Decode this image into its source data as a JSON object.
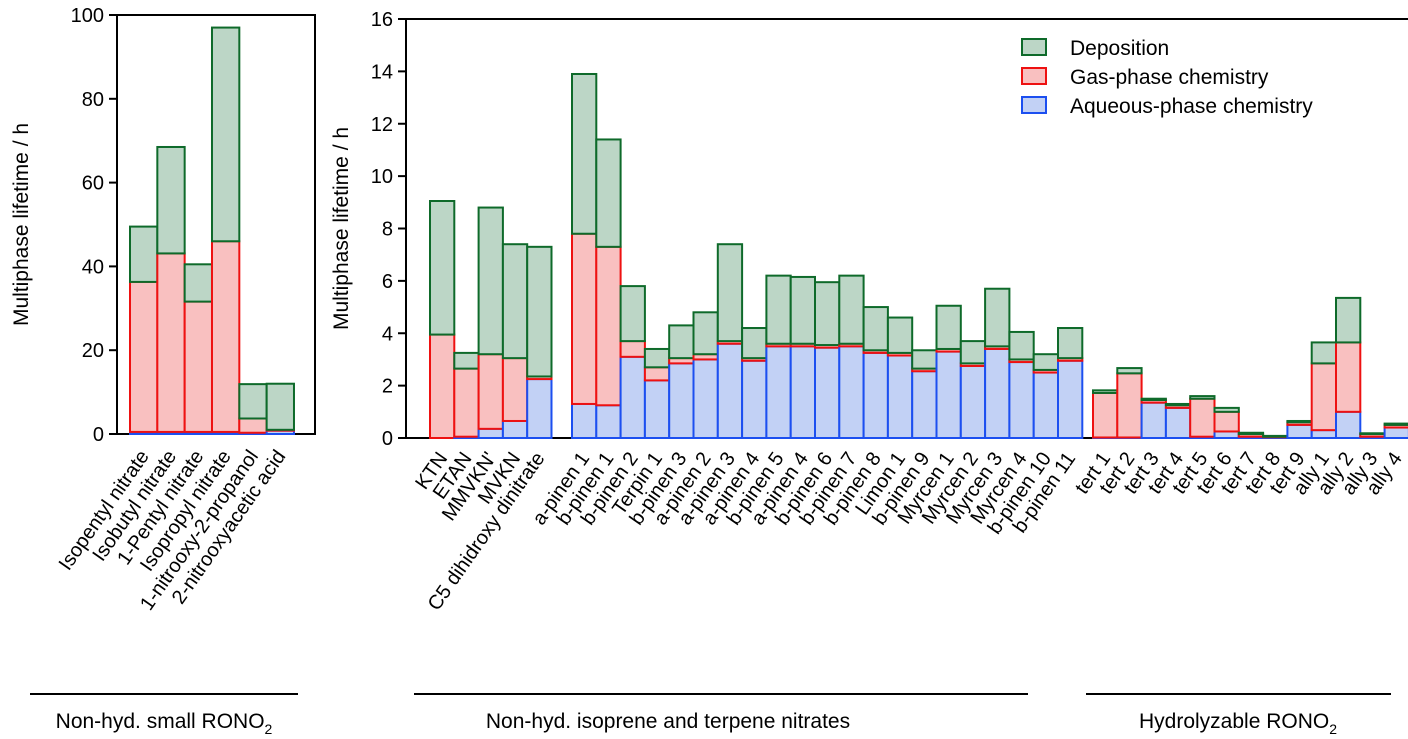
{
  "colors": {
    "aqueous_fill": "#c2d1f5",
    "aqueous_edge": "#1c4ff0",
    "gas_fill": "#f9c0c0",
    "gas_edge": "#ee1111",
    "dep_fill": "#bcd6c6",
    "dep_edge": "#0e6a2a"
  },
  "legend": [
    "Deposition",
    "Gas-phase chemistry",
    "Aqueous-phase chemistry"
  ],
  "groups": [
    {
      "name": "Non-hyd. small RONO",
      "sub": "2"
    },
    {
      "name": "Non-hyd. isoprene and terpene nitrates",
      "sub": ""
    },
    {
      "name": "Hydrolyzable RONO",
      "sub": "2"
    }
  ],
  "chart_data": [
    {
      "type": "bar",
      "stacked": true,
      "ylabel": "Multiphase lifetime / h",
      "ylim": [
        0,
        100
      ],
      "yticks": [
        0,
        20,
        40,
        60,
        80,
        100
      ],
      "categories": [
        "Isopentyl nitrate",
        "Isobutyl nitrate",
        "1-Pentyl nitrate",
        "Isopropyl nitrate",
        "1-nitrooxy-2-propanol",
        "2-nitrooxyacetic acid"
      ],
      "series": [
        {
          "name": "Aqueous-phase chemistry",
          "values": [
            0.5,
            0.5,
            0.5,
            0.5,
            0.3,
            0.8
          ]
        },
        {
          "name": "Gas-phase chemistry",
          "values": [
            35.8,
            42.6,
            31.1,
            45.5,
            3.4,
            0.2
          ]
        },
        {
          "name": "Deposition",
          "values": [
            13.2,
            25.4,
            8.9,
            51.0,
            8.2,
            11.0
          ]
        }
      ]
    },
    {
      "type": "bar",
      "stacked": true,
      "ylabel": "Multiphase lifetime / h",
      "ylim": [
        0,
        16
      ],
      "yticks": [
        0,
        2,
        4,
        6,
        8,
        10,
        12,
        14,
        16
      ],
      "groups": [
        [
          "KTN",
          "ETAN",
          "MMVKN'",
          "MVKN",
          "C5 dihidroxy dinitrate"
        ],
        [
          "a-pinen 1",
          "b-pinen 1",
          "b-pinen 2",
          "Terpin 1",
          "b-pinen 3",
          "a-pinen 2",
          "a-pinen 3",
          "a-pinen 4",
          "b-pinen 5",
          "a-pinen 4",
          "b-pinen 6",
          "b-pinen 7",
          "b-pinen 8",
          "Limon 1",
          "b-pinen 9",
          "Myrcen 1",
          "Myrcen 2",
          "Myrcen 3",
          "Myrcen 4",
          "b-pinen 10",
          "b-pinen 11"
        ],
        [
          "tert 1",
          "tert 2",
          "tert 3",
          "tert 4",
          "tert 5",
          "tert 6",
          "tert 7",
          "tert 8",
          "tert 9",
          "ally 1",
          "ally 2",
          "ally 3",
          "ally 4"
        ]
      ],
      "series": [
        {
          "name": "Aqueous-phase chemistry",
          "values": [
            [
              0.0,
              0.05,
              0.35,
              0.65,
              2.25
            ],
            [
              1.3,
              1.25,
              3.1,
              2.2,
              2.85,
              3.0,
              3.6,
              2.95,
              3.5,
              3.5,
              3.45,
              3.5,
              3.25,
              3.15,
              2.55,
              3.3,
              2.75,
              3.4,
              2.9,
              2.5,
              2.95
            ],
            [
              0.02,
              0.02,
              1.35,
              1.15,
              0.05,
              0.25,
              0.05,
              0.03,
              0.5,
              0.3,
              1.0,
              0.05,
              0.4
            ]
          ]
        },
        {
          "name": "Gas-phase chemistry",
          "values": [
            [
              3.95,
              2.6,
              2.85,
              2.4,
              0.1
            ],
            [
              6.5,
              6.05,
              0.6,
              0.5,
              0.2,
              0.2,
              0.1,
              0.1,
              0.1,
              0.1,
              0.1,
              0.1,
              0.1,
              0.1,
              0.1,
              0.1,
              0.1,
              0.1,
              0.1,
              0.1,
              0.1
            ],
            [
              1.7,
              2.45,
              0.1,
              0.1,
              1.45,
              0.75,
              0.1,
              0.02,
              0.1,
              2.55,
              2.65,
              0.1,
              0.1
            ]
          ]
        },
        {
          "name": "Deposition",
          "values": [
            [
              5.1,
              0.6,
              5.6,
              4.35,
              4.95
            ],
            [
              6.1,
              4.1,
              2.1,
              0.7,
              1.25,
              1.6,
              3.7,
              1.15,
              2.6,
              2.55,
              2.4,
              2.6,
              1.65,
              1.35,
              0.7,
              1.65,
              0.85,
              2.2,
              1.05,
              0.6,
              1.15
            ],
            [
              0.1,
              0.2,
              0.05,
              0.05,
              0.1,
              0.15,
              0.05,
              0.03,
              0.05,
              0.8,
              1.7,
              0.03,
              0.05
            ]
          ]
        }
      ]
    }
  ]
}
